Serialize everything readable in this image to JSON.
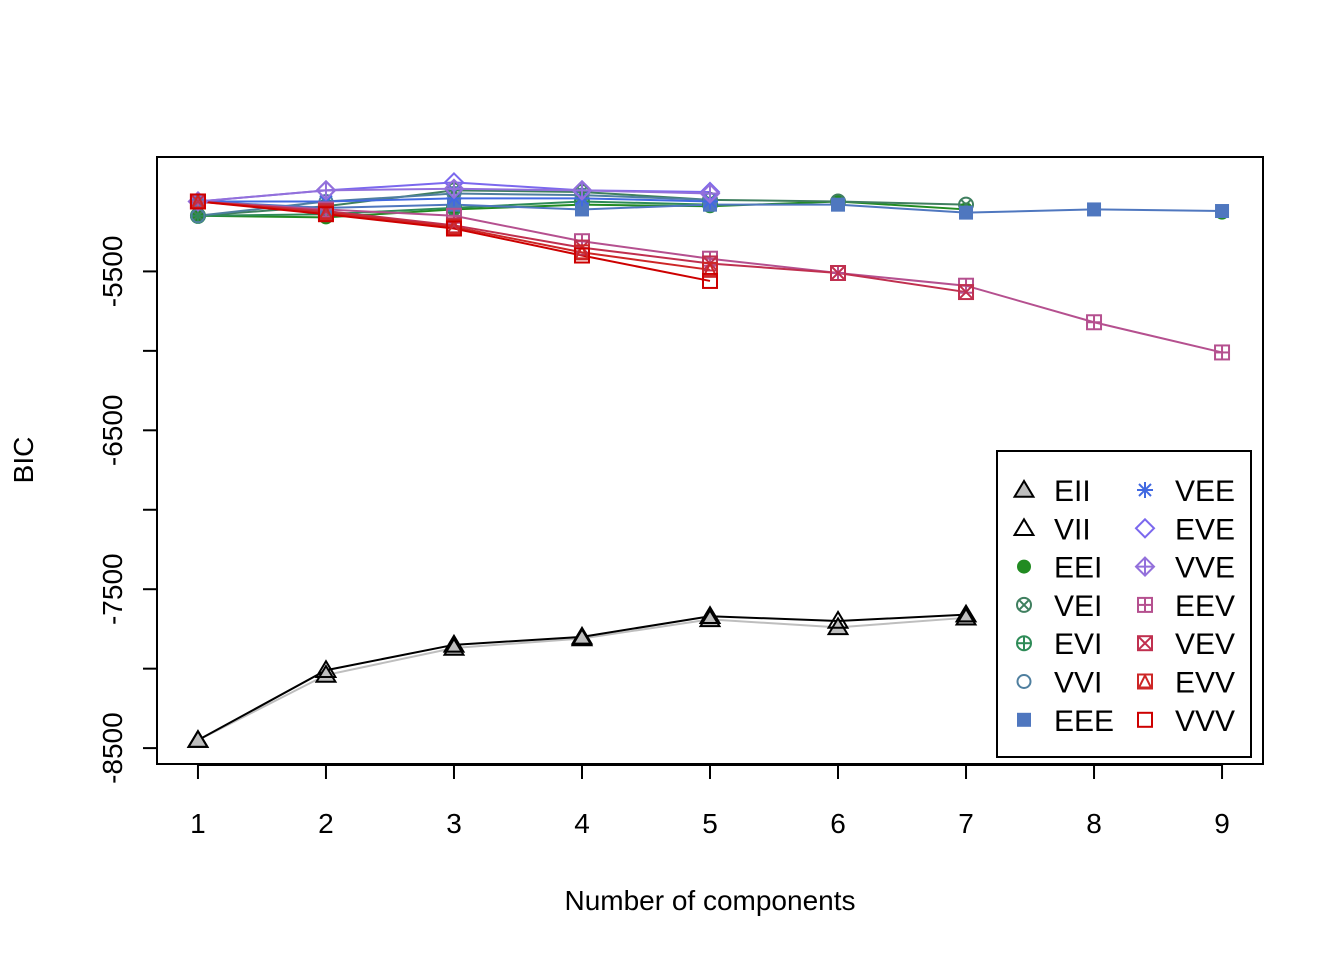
{
  "chart_data": {
    "type": "line",
    "xlabel": "Number of components",
    "ylabel": "BIC",
    "x": [
      1,
      2,
      3,
      4,
      5,
      6,
      7,
      8,
      9
    ],
    "xlim": [
      0.68,
      9.32
    ],
    "ylim": [
      -8600,
      -4780
    ],
    "yticks": [
      -5500,
      -6500,
      -7500,
      -8500
    ],
    "grid": false,
    "legend_position": "bottom-right",
    "legend": [
      {
        "name": "EII",
        "color": "#bebebe",
        "marker": "triangle-filled"
      },
      {
        "name": "VII",
        "color": "#000000",
        "marker": "triangle-open"
      },
      {
        "name": "EEI",
        "color": "#228b22",
        "marker": "circle-filled"
      },
      {
        "name": "VEI",
        "color": "#3f7f5f",
        "marker": "circle-x"
      },
      {
        "name": "EVI",
        "color": "#2e8b57",
        "marker": "circle-plus"
      },
      {
        "name": "VVI",
        "color": "#4f7f9f",
        "marker": "circle-open"
      },
      {
        "name": "EEE",
        "color": "#4f77bf",
        "marker": "square-filled"
      },
      {
        "name": "VEE",
        "color": "#4169e1",
        "marker": "asterisk"
      },
      {
        "name": "EVE",
        "color": "#7b68ee",
        "marker": "diamond-open"
      },
      {
        "name": "VVE",
        "color": "#9370db",
        "marker": "diamond-plus"
      },
      {
        "name": "EEV",
        "color": "#b5508f",
        "marker": "square-plus"
      },
      {
        "name": "VEV",
        "color": "#c0304f",
        "marker": "square-x"
      },
      {
        "name": "EVV",
        "color": "#cd2626",
        "marker": "square-triangle"
      },
      {
        "name": "VVV",
        "color": "#cd0000",
        "marker": "square-open"
      }
    ],
    "series": [
      {
        "name": "EII",
        "color": "#bebebe",
        "marker": "triangle-filled",
        "values": [
          -8450,
          -8040,
          -7870,
          -7810,
          -7690,
          -7740,
          -7680,
          null,
          null
        ]
      },
      {
        "name": "VII",
        "color": "#000000",
        "marker": "triangle-open",
        "values": [
          -8450,
          -8010,
          -7850,
          -7800,
          -7670,
          -7700,
          -7660,
          null,
          null
        ]
      },
      {
        "name": "EEI",
        "color": "#228b22",
        "marker": "circle-filled",
        "values": [
          -5150,
          -5160,
          -5110,
          -5080,
          -5090,
          -5060,
          -5110,
          null,
          -5130
        ]
      },
      {
        "name": "VEI",
        "color": "#3f7f5f",
        "marker": "circle-x",
        "values": [
          -5150,
          -5090,
          -4990,
          -5000,
          -5050,
          -5060,
          -5080,
          null,
          null
        ]
      },
      {
        "name": "EVI",
        "color": "#2e8b57",
        "marker": "circle-plus",
        "values": [
          -5150,
          -5140,
          -5100,
          -5060,
          -5080,
          null,
          null,
          null,
          null
        ]
      },
      {
        "name": "VVI",
        "color": "#4f7f9f",
        "marker": "circle-open",
        "values": [
          -5150,
          -5060,
          -5010,
          -5020,
          -5050,
          null,
          null,
          null,
          null
        ]
      },
      {
        "name": "EEE",
        "color": "#4f77bf",
        "marker": "square-filled",
        "values": [
          -5060,
          -5100,
          -5080,
          -5110,
          -5080,
          -5080,
          -5130,
          -5110,
          -5120
        ]
      },
      {
        "name": "VEE",
        "color": "#4169e1",
        "marker": "asterisk",
        "values": [
          -5060,
          -5060,
          -5040,
          -5040,
          -5060,
          null,
          null,
          null,
          null
        ]
      },
      {
        "name": "EVE",
        "color": "#7b68ee",
        "marker": "diamond-open",
        "values": [
          -5060,
          -4990,
          -4940,
          -4990,
          -5000,
          null,
          null,
          null,
          null
        ]
      },
      {
        "name": "VVE",
        "color": "#9370db",
        "marker": "diamond-plus",
        "values": [
          -5060,
          -4990,
          -4980,
          -4990,
          -5010,
          null,
          null,
          null,
          null
        ]
      },
      {
        "name": "EEV",
        "color": "#b5508f",
        "marker": "square-plus",
        "values": [
          -5060,
          -5110,
          -5150,
          -5310,
          -5420,
          -5510,
          -5590,
          -5820,
          -6010
        ]
      },
      {
        "name": "VEV",
        "color": "#c0304f",
        "marker": "square-x",
        "values": [
          -5060,
          -5120,
          -5210,
          -5350,
          -5450,
          -5510,
          -5630,
          null,
          null
        ]
      },
      {
        "name": "EVV",
        "color": "#cd2626",
        "marker": "square-triangle",
        "values": [
          -5060,
          -5130,
          -5220,
          -5380,
          -5490,
          null,
          null,
          null,
          null
        ]
      },
      {
        "name": "VVV",
        "color": "#cd0000",
        "marker": "square-open",
        "values": [
          -5060,
          -5140,
          -5230,
          -5400,
          -5560,
          null,
          null,
          null,
          null
        ]
      }
    ]
  }
}
